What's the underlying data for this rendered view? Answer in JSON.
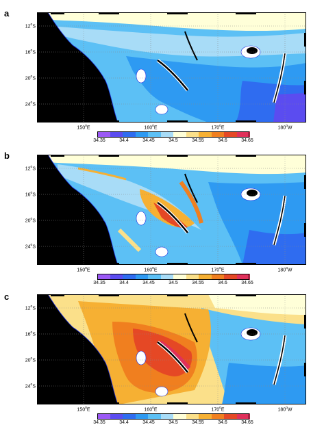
{
  "panels": [
    {
      "letter": "a",
      "scheme": "cool"
    },
    {
      "letter": "b",
      "scheme": "mixed"
    },
    {
      "letter": "c",
      "scheme": "warm"
    }
  ],
  "lat_labels": [
    "12",
    "16",
    "20",
    "24"
  ],
  "lat_suffix": "S",
  "lon_labels": [
    {
      "deg": "150",
      "dir": "E"
    },
    {
      "deg": "160",
      "dir": "E"
    },
    {
      "deg": "170",
      "dir": "E"
    },
    {
      "deg": "180",
      "dir": "W"
    }
  ],
  "colorbar": {
    "ticks": [
      "34.35",
      "34.4",
      "34.45",
      "34.5",
      "34.55",
      "34.6",
      "34.65"
    ],
    "colors": [
      "#9b59f5",
      "#5b4cf0",
      "#2f6cf0",
      "#2e9af2",
      "#5cc0f5",
      "#a8dcf7",
      "#ffffd8",
      "#fbe08a",
      "#f6b033",
      "#f07f1f",
      "#e54825",
      "#e0305a"
    ]
  },
  "colors": {
    "land": "#000000",
    "coast_outline": "#1a2ce0"
  }
}
